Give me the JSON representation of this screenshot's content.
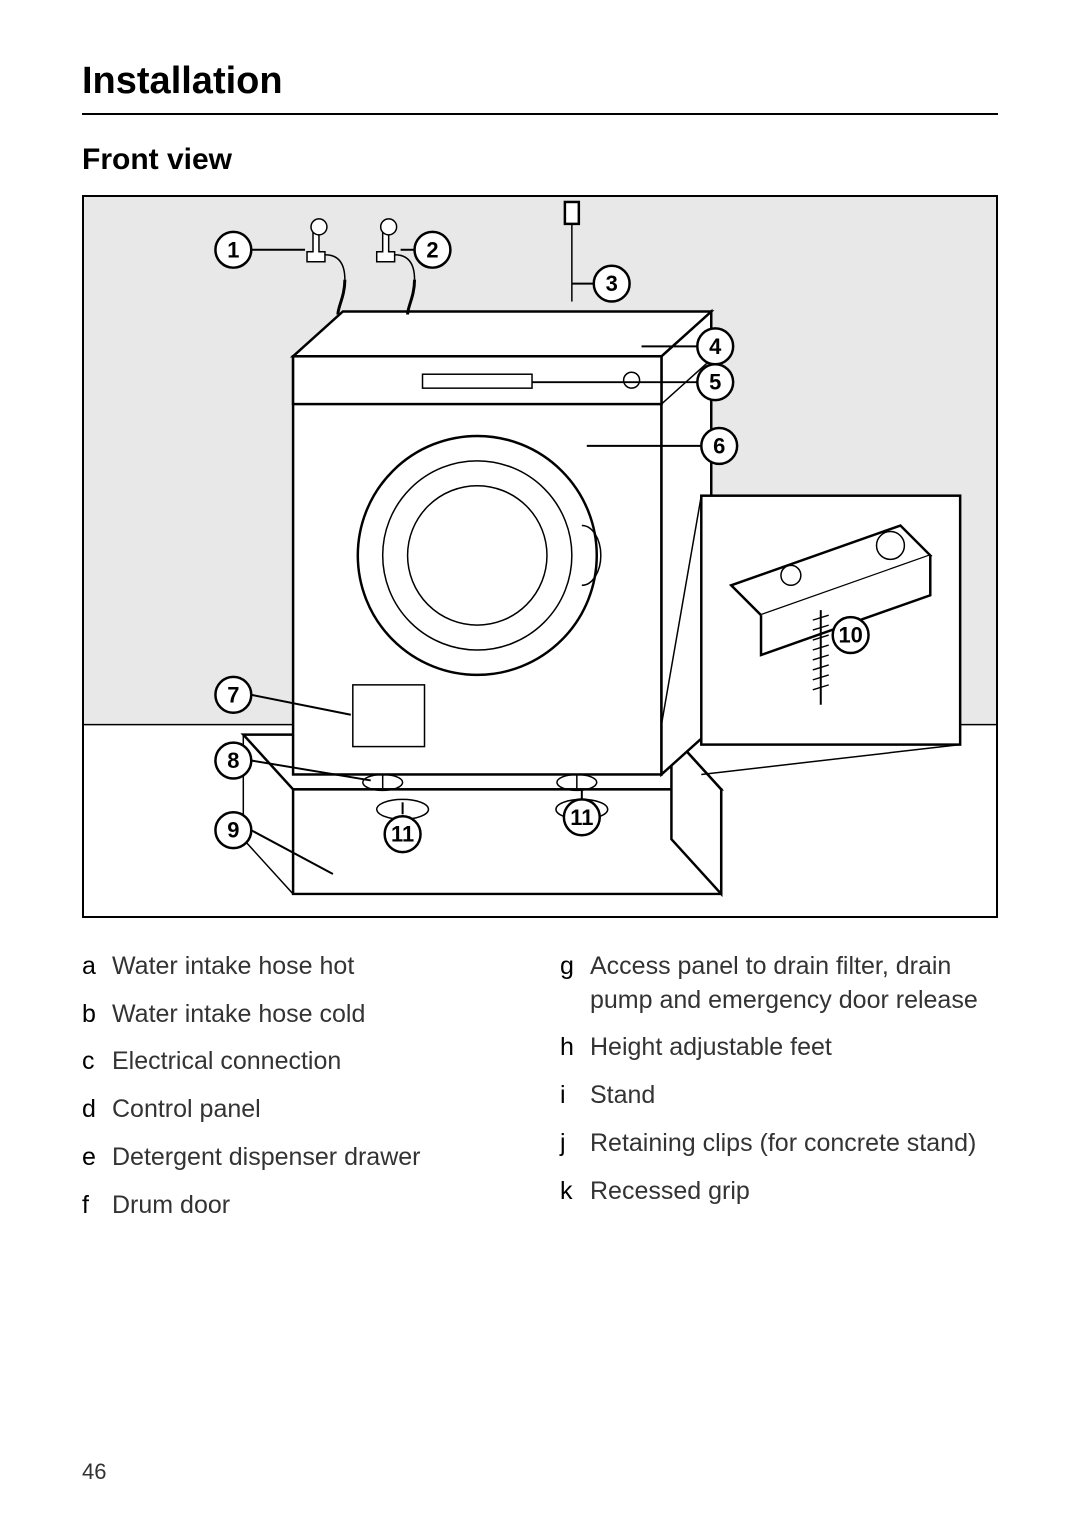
{
  "page": {
    "title": "Installation",
    "subtitle": "Front view",
    "number": "46"
  },
  "diagram": {
    "callouts": {
      "c1": "1",
      "c2": "2",
      "c3": "3",
      "c4": "4",
      "c5": "5",
      "c6": "6",
      "c7": "7",
      "c8": "8",
      "c9": "9",
      "c10": "10",
      "c11a": "11",
      "c11b": "11"
    }
  },
  "legend": {
    "left": [
      {
        "label": "a",
        "text": "Water intake hose hot"
      },
      {
        "label": "b",
        "text": "Water intake hose cold"
      },
      {
        "label": "c",
        "text": "Electrical connection"
      },
      {
        "label": "d",
        "text": "Control panel"
      },
      {
        "label": "e",
        "text": "Detergent dispenser drawer"
      },
      {
        "label": "f",
        "text": "Drum door"
      }
    ],
    "right": [
      {
        "label": "g",
        "text": "Access panel to drain filter, drain pump and emergency door release"
      },
      {
        "label": "h",
        "text": "Height adjustable feet"
      },
      {
        "label": "i",
        "text": "Stand"
      },
      {
        "label": "j",
        "text": "Retaining clips (for concrete stand)"
      },
      {
        "label": "k",
        "text": "Recessed grip"
      }
    ]
  },
  "style": {
    "page_bg": "#ffffff",
    "text_color": "#000000",
    "muted_text": "#333333",
    "border_color": "#000000",
    "wall_grey": "#e8e8e8",
    "title_fontsize": 38,
    "subtitle_fontsize": 30,
    "legend_fontsize": 25,
    "callout_radius": 18
  }
}
